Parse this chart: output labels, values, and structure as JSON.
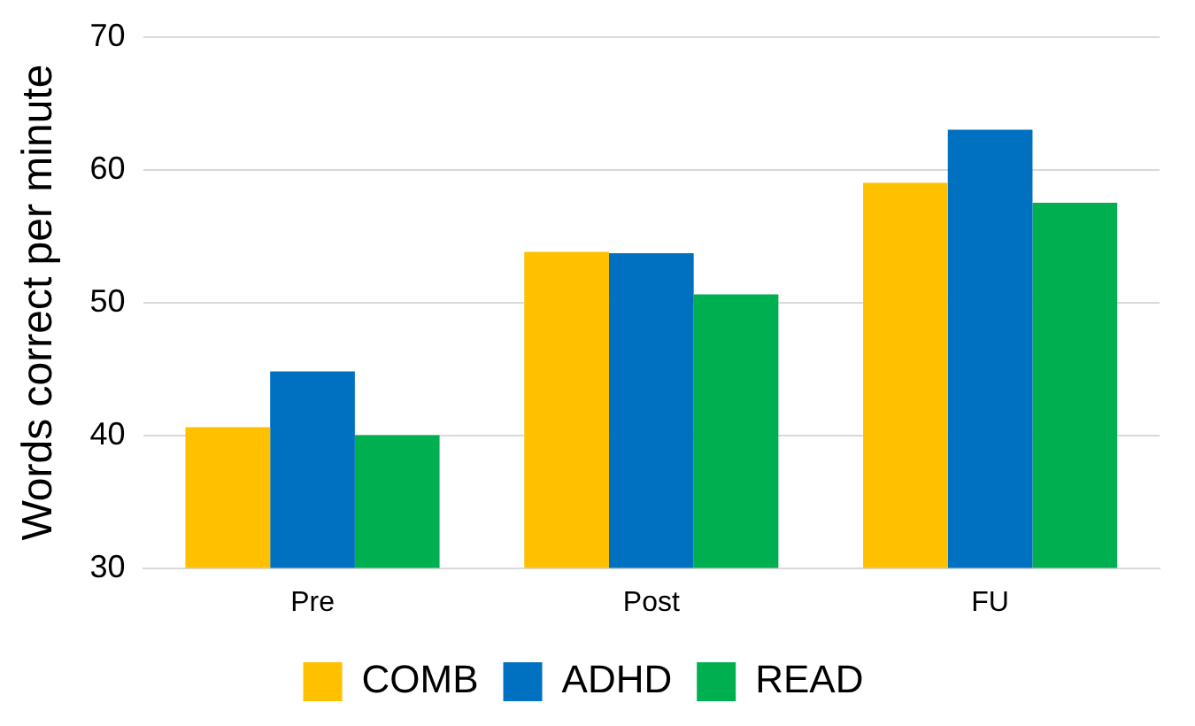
{
  "chart_data": {
    "type": "bar",
    "ylabel": "Words correct per minute",
    "categories": [
      "Pre",
      "Post",
      "FU"
    ],
    "series": [
      {
        "name": "COMB",
        "color": "#ffc000",
        "values": [
          40.6,
          53.8,
          59.0
        ]
      },
      {
        "name": "ADHD",
        "color": "#0070c0",
        "values": [
          44.8,
          53.7,
          63.0
        ]
      },
      {
        "name": "READ",
        "color": "#00b050",
        "values": [
          40.0,
          50.6,
          57.5
        ]
      }
    ],
    "ylim": [
      30,
      70
    ],
    "yticks": [
      30,
      40,
      50,
      60,
      70
    ],
    "grid": "y",
    "legend": "bottom"
  }
}
